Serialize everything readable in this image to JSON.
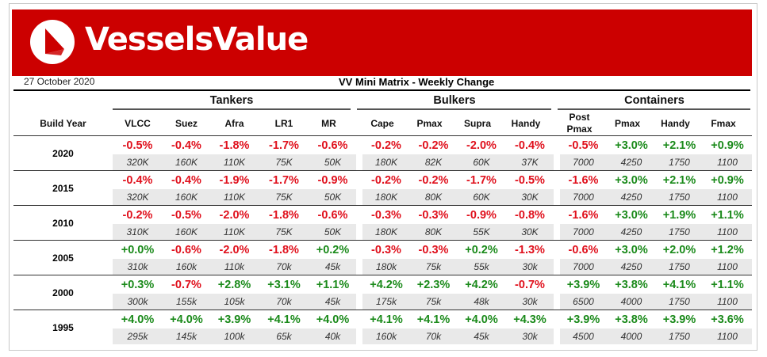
{
  "brand": {
    "name": "VesselsValue",
    "color": "#cc0000"
  },
  "header": {
    "date": "27 October 2020",
    "title": "VV Mini Matrix - Weekly Change"
  },
  "groups": [
    "Tankers",
    "Bulkers",
    "Containers"
  ],
  "columns": {
    "build_year": "Build Year",
    "tankers": [
      "VLCC",
      "Suez",
      "Afra",
      "LR1",
      "MR"
    ],
    "bulkers": [
      "Cape",
      "Pmax",
      "Supra",
      "Handy"
    ],
    "containers": [
      "Post\nPmax",
      "Pmax",
      "Handy",
      "Fmax"
    ]
  },
  "rows": [
    {
      "year": "2020",
      "tankers": [
        [
          "-0.5%",
          "320K"
        ],
        [
          "-0.4%",
          "160K"
        ],
        [
          "-1.8%",
          "110K"
        ],
        [
          "-1.7%",
          "75K"
        ],
        [
          "-0.6%",
          "50K"
        ]
      ],
      "bulkers": [
        [
          "-0.2%",
          "180K"
        ],
        [
          "-0.2%",
          "82K"
        ],
        [
          "-2.0%",
          "60K"
        ],
        [
          "-0.4%",
          "37K"
        ]
      ],
      "containers": [
        [
          "-0.5%",
          "7000"
        ],
        [
          "+3.0%",
          "4250"
        ],
        [
          "+2.1%",
          "1750"
        ],
        [
          "+0.9%",
          "1100"
        ]
      ]
    },
    {
      "year": "2015",
      "tankers": [
        [
          "-0.4%",
          "320K"
        ],
        [
          "-0.4%",
          "160K"
        ],
        [
          "-1.9%",
          "110K"
        ],
        [
          "-1.7%",
          "75K"
        ],
        [
          "-0.9%",
          "50K"
        ]
      ],
      "bulkers": [
        [
          "-0.2%",
          "180K"
        ],
        [
          "-0.2%",
          "80K"
        ],
        [
          "-1.7%",
          "60K"
        ],
        [
          "-0.5%",
          "30K"
        ]
      ],
      "containers": [
        [
          "-1.6%",
          "7000"
        ],
        [
          "+3.0%",
          "4250"
        ],
        [
          "+2.1%",
          "1750"
        ],
        [
          "+0.9%",
          "1100"
        ]
      ]
    },
    {
      "year": "2010",
      "tankers": [
        [
          "-0.2%",
          "310K"
        ],
        [
          "-0.5%",
          "160K"
        ],
        [
          "-2.0%",
          "110K"
        ],
        [
          "-1.8%",
          "75K"
        ],
        [
          "-0.6%",
          "50K"
        ]
      ],
      "bulkers": [
        [
          "-0.3%",
          "180K"
        ],
        [
          "-0.3%",
          "80K"
        ],
        [
          "-0.9%",
          "55K"
        ],
        [
          "-0.8%",
          "30K"
        ]
      ],
      "containers": [
        [
          "-1.6%",
          "7000"
        ],
        [
          "+3.0%",
          "4250"
        ],
        [
          "+1.9%",
          "1750"
        ],
        [
          "+1.1%",
          "1100"
        ]
      ]
    },
    {
      "year": "2005",
      "tankers": [
        [
          "+0.0%",
          "310k"
        ],
        [
          "-0.6%",
          "160k"
        ],
        [
          "-2.0%",
          "110k"
        ],
        [
          "-1.8%",
          "70k"
        ],
        [
          "+0.2%",
          "45k"
        ]
      ],
      "bulkers": [
        [
          "-0.3%",
          "180k"
        ],
        [
          "-0.3%",
          "75k"
        ],
        [
          "+0.2%",
          "55k"
        ],
        [
          "-1.3%",
          "30k"
        ]
      ],
      "containers": [
        [
          "-0.6%",
          "7000"
        ],
        [
          "+3.0%",
          "4250"
        ],
        [
          "+2.0%",
          "1750"
        ],
        [
          "+1.2%",
          "1100"
        ]
      ]
    },
    {
      "year": "2000",
      "tankers": [
        [
          "+0.3%",
          "300k"
        ],
        [
          "-0.7%",
          "155k"
        ],
        [
          "+2.8%",
          "105k"
        ],
        [
          "+3.1%",
          "70k"
        ],
        [
          "+1.1%",
          "45k"
        ]
      ],
      "bulkers": [
        [
          "+4.2%",
          "175k"
        ],
        [
          "+2.3%",
          "75k"
        ],
        [
          "+4.2%",
          "48k"
        ],
        [
          "-0.7%",
          "30k"
        ]
      ],
      "containers": [
        [
          "+3.9%",
          "6500"
        ],
        [
          "+3.8%",
          "4000"
        ],
        [
          "+4.1%",
          "1750"
        ],
        [
          "+1.1%",
          "1100"
        ]
      ]
    },
    {
      "year": "1995",
      "tankers": [
        [
          "+4.0%",
          "295k"
        ],
        [
          "+4.0%",
          "145k"
        ],
        [
          "+3.9%",
          "100k"
        ],
        [
          "+4.1%",
          "65k"
        ],
        [
          "+4.0%",
          "40k"
        ]
      ],
      "bulkers": [
        [
          "+4.1%",
          "160k"
        ],
        [
          "+4.1%",
          "70k"
        ],
        [
          "+4.0%",
          "45k"
        ],
        [
          "+4.3%",
          "30k"
        ]
      ],
      "containers": [
        [
          "+3.9%",
          "4500"
        ],
        [
          "+3.8%",
          "4000"
        ],
        [
          "+3.9%",
          "1750"
        ],
        [
          "+3.6%",
          "1100"
        ]
      ]
    }
  ],
  "colors": {
    "positive": "#1a8a1a",
    "negative": "#e0101c",
    "size_row_bg": "#e9e9e9"
  }
}
